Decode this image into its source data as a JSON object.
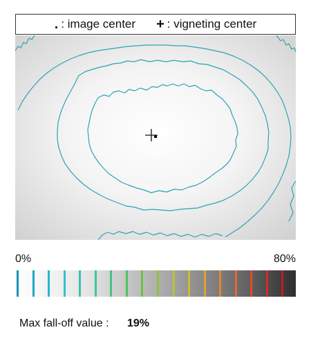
{
  "legend": {
    "image_center_symbol": ".",
    "image_center_label": ": image center",
    "vignetting_center_symbol": "+",
    "vignetting_center_label": ": vigneting center"
  },
  "scale": {
    "min_label": "0%",
    "max_label": "80%",
    "colors": [
      "#1a8fb8",
      "#1ba6c8",
      "#22b6cf",
      "#30c2c8",
      "#36c3b0",
      "#3ec59a",
      "#44c47d",
      "#4ec45a",
      "#6bc43e",
      "#92c436",
      "#b8c434",
      "#d4b834",
      "#e0a033",
      "#e48632",
      "#e46a30",
      "#e04a2c",
      "#d62a28",
      "#c21c20"
    ]
  },
  "footer": {
    "label": "Max fall-off value :",
    "value": "19%"
  },
  "colors": {
    "contour": "#2aa3b4",
    "marker": "#111111"
  }
}
